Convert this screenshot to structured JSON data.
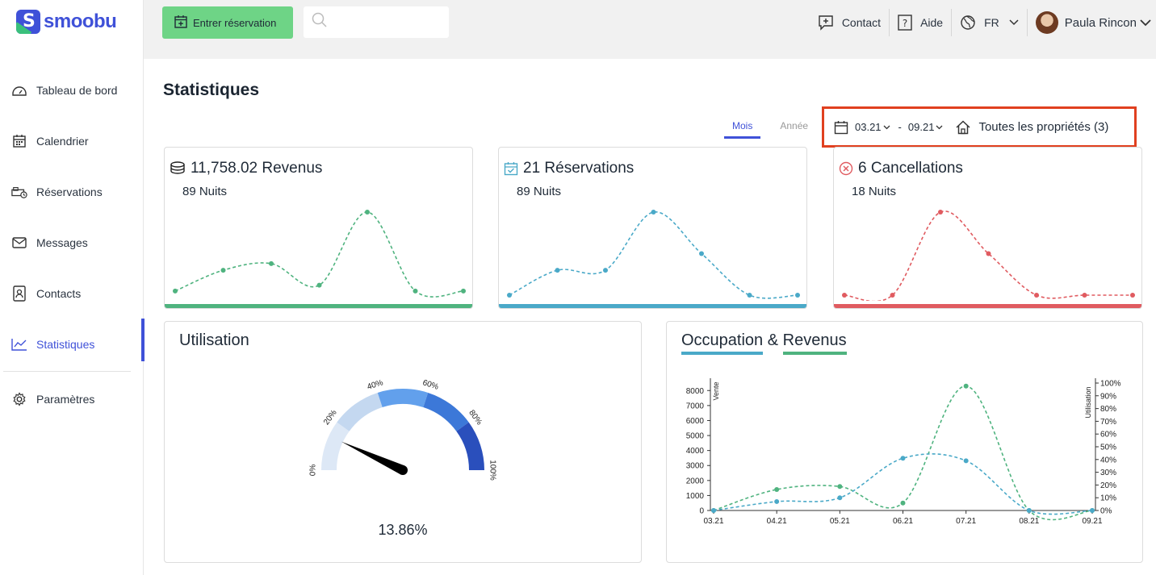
{
  "brand": {
    "name": "smoobu"
  },
  "sidebar": {
    "items": [
      {
        "label": "Tableau de bord",
        "icon": "dashboard-icon"
      },
      {
        "label": "Calendrier",
        "icon": "calendar-icon"
      },
      {
        "label": "Réservations",
        "icon": "bed-icon"
      },
      {
        "label": "Messages",
        "icon": "mail-icon"
      },
      {
        "label": "Contacts",
        "icon": "contact-icon"
      },
      {
        "label": "Statistiques",
        "icon": "chart-icon",
        "active": true
      },
      {
        "label": "Paramètres",
        "icon": "gear-icon"
      }
    ]
  },
  "topbar": {
    "entry_button": "Entrer réservation",
    "search_placeholder": "",
    "contact": "Contact",
    "help": "Aide",
    "language": "FR",
    "user": "Paula Rincon"
  },
  "page": {
    "title": "Statistiques",
    "tabs": [
      {
        "label": "Mois",
        "active": true
      },
      {
        "label": "Année",
        "active": false
      }
    ],
    "filter": {
      "from": "03.21",
      "separator": "-",
      "to": "09.21",
      "properties": "Toutes les propriétés (3)"
    }
  },
  "stats": [
    {
      "title": "11,758.02 Revenus",
      "sub": "89 Nuits",
      "color": "#4fb37f",
      "icon": "coins-icon",
      "values": [
        5,
        30,
        38,
        12,
        100,
        5,
        5
      ]
    },
    {
      "title": "21 Réservations",
      "sub": "89 Nuits",
      "color": "#4aa9c8",
      "icon": "calendar-check-icon",
      "values": [
        0,
        30,
        30,
        100,
        50,
        0,
        0
      ]
    },
    {
      "title": "6 Cancellations",
      "sub": "18 Nuits",
      "color": "#e05b60",
      "icon": "cancel-circle-icon",
      "values": [
        0,
        0,
        100,
        50,
        0,
        0,
        0
      ]
    }
  ],
  "utilisation": {
    "title": "Utilisation",
    "value_label": "13.86%",
    "value": 13.86,
    "ticks": [
      "0%",
      "20%",
      "40%",
      "60%",
      "80%",
      "100%"
    ],
    "colors": [
      "#dde8f6",
      "#c4d8f0",
      "#62a0ec",
      "#3c78d8",
      "#2a4fbc"
    ]
  },
  "occupation": {
    "title_a": "Occupation",
    "amp": "&",
    "title_b": "Revenus",
    "color_a": "#4aa9c8",
    "color_b": "#4fb37f"
  },
  "chart_data": {
    "type": "line",
    "x": [
      "03.21",
      "04.21",
      "05.21",
      "06.21",
      "07.21",
      "08.21",
      "09.21"
    ],
    "ylabel": "Vente",
    "y2label": "Utilisation",
    "ylim": [
      0,
      8500
    ],
    "y2lim": [
      0,
      100
    ],
    "y_ticks": [
      "0",
      "1000",
      "2000",
      "3000",
      "4000",
      "5000",
      "6000",
      "7000",
      "8000"
    ],
    "y2_ticks": [
      "0%",
      "10%",
      "20%",
      "30%",
      "40%",
      "50%",
      "60%",
      "70%",
      "80%",
      "90%",
      "100%"
    ],
    "series": [
      {
        "axis": "left",
        "color": "#4fb37f",
        "values": [
          0,
          1400,
          1600,
          500,
          8300,
          0,
          0
        ]
      },
      {
        "axis": "right",
        "color": "#4aa9c8",
        "values": [
          0,
          7,
          10,
          41,
          39,
          0,
          0
        ]
      }
    ]
  }
}
